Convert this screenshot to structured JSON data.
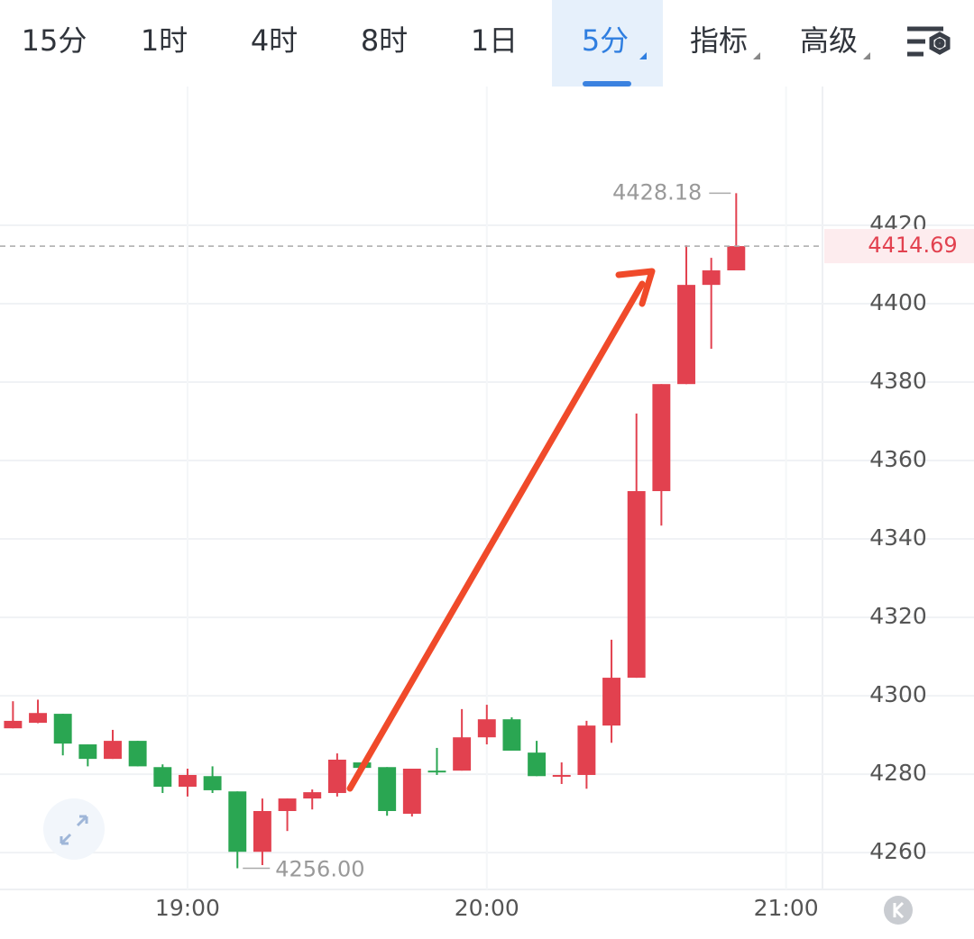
{
  "tabs": [
    "15分",
    "1时",
    "4时",
    "8时",
    "1日",
    "5分",
    "指标",
    "高级"
  ],
  "chart_data": {
    "type": "candlestick",
    "x": [
      1105,
      1110,
      1115,
      1120,
      1125,
      1130,
      1135,
      1140,
      1145,
      1150,
      1155,
      1160,
      1165,
      1170,
      1175,
      1180,
      1185,
      1190,
      1195,
      1200,
      1205,
      1210,
      1215,
      1220,
      1225,
      1230,
      1235,
      1240,
      1245,
      1250
    ],
    "open": [
      4291.7,
      4293.1,
      4295.4,
      4287.6,
      4283.9,
      4288.5,
      4281.8,
      4276.8,
      4279.5,
      4275.6,
      4260.2,
      4270.6,
      4273.8,
      4275.2,
      4283.0,
      4281.8,
      4269.9,
      4280.9,
      4280.9,
      4289.4,
      4294.0,
      4285.5,
      4279.6,
      4279.8,
      4292.4,
      4304.6,
      4352.2,
      4379.5,
      4404.8,
      4408.5
    ],
    "close": [
      4293.6,
      4295.6,
      4287.8,
      4283.9,
      4288.5,
      4282.0,
      4276.8,
      4279.8,
      4275.9,
      4260.2,
      4270.6,
      4273.8,
      4275.4,
      4283.7,
      4281.6,
      4270.6,
      4281.4,
      4280.8,
      4289.4,
      4294.0,
      4286.0,
      4279.5,
      4279.8,
      4292.4,
      4304.6,
      4352.2,
      4379.5,
      4404.8,
      4408.5,
      4414.69
    ],
    "high": [
      4298.6,
      4299.0,
      4295.4,
      4287.6,
      4291.3,
      4288.5,
      4282.5,
      4281.4,
      4282.0,
      4275.6,
      4273.8,
      4273.8,
      4276.1,
      4285.3,
      4283.0,
      4281.8,
      4281.4,
      4286.7,
      4296.6,
      4297.7,
      4294.5,
      4288.5,
      4283.0,
      4293.6,
      4314.3,
      4372.0,
      4379.5,
      4414.9,
      4411.7,
      4428.18
    ],
    "low": [
      4291.7,
      4293.0,
      4284.8,
      4282.0,
      4283.9,
      4282.0,
      4275.2,
      4274.3,
      4275.2,
      4256.0,
      4256.8,
      4265.5,
      4271.0,
      4274.3,
      4281.0,
      4269.4,
      4269.2,
      4279.8,
      4280.9,
      4287.6,
      4286.0,
      4279.5,
      4277.5,
      4276.3,
      4288.0,
      4304.6,
      4343.4,
      4379.5,
      4388.5,
      4408.5
    ],
    "up_color": "#e2414f",
    "down_color": "#2aa652",
    "xlim": [
      1102.4,
      1267.3
    ],
    "xticks": [
      {
        "value": 1140,
        "label": "19:00"
      },
      {
        "value": 1200,
        "label": "20:00"
      },
      {
        "value": 1260,
        "label": "21:00"
      }
    ],
    "ylim": [
      4250.6,
      4455.4
    ],
    "yticks": [
      4260,
      4280,
      4300,
      4320,
      4340,
      4360,
      4380,
      4400,
      4420
    ],
    "grid": true,
    "last_price": 4414.69,
    "high_label": 4428.18,
    "low_label": {
      "value": 4256,
      "label": "4256.00"
    }
  }
}
